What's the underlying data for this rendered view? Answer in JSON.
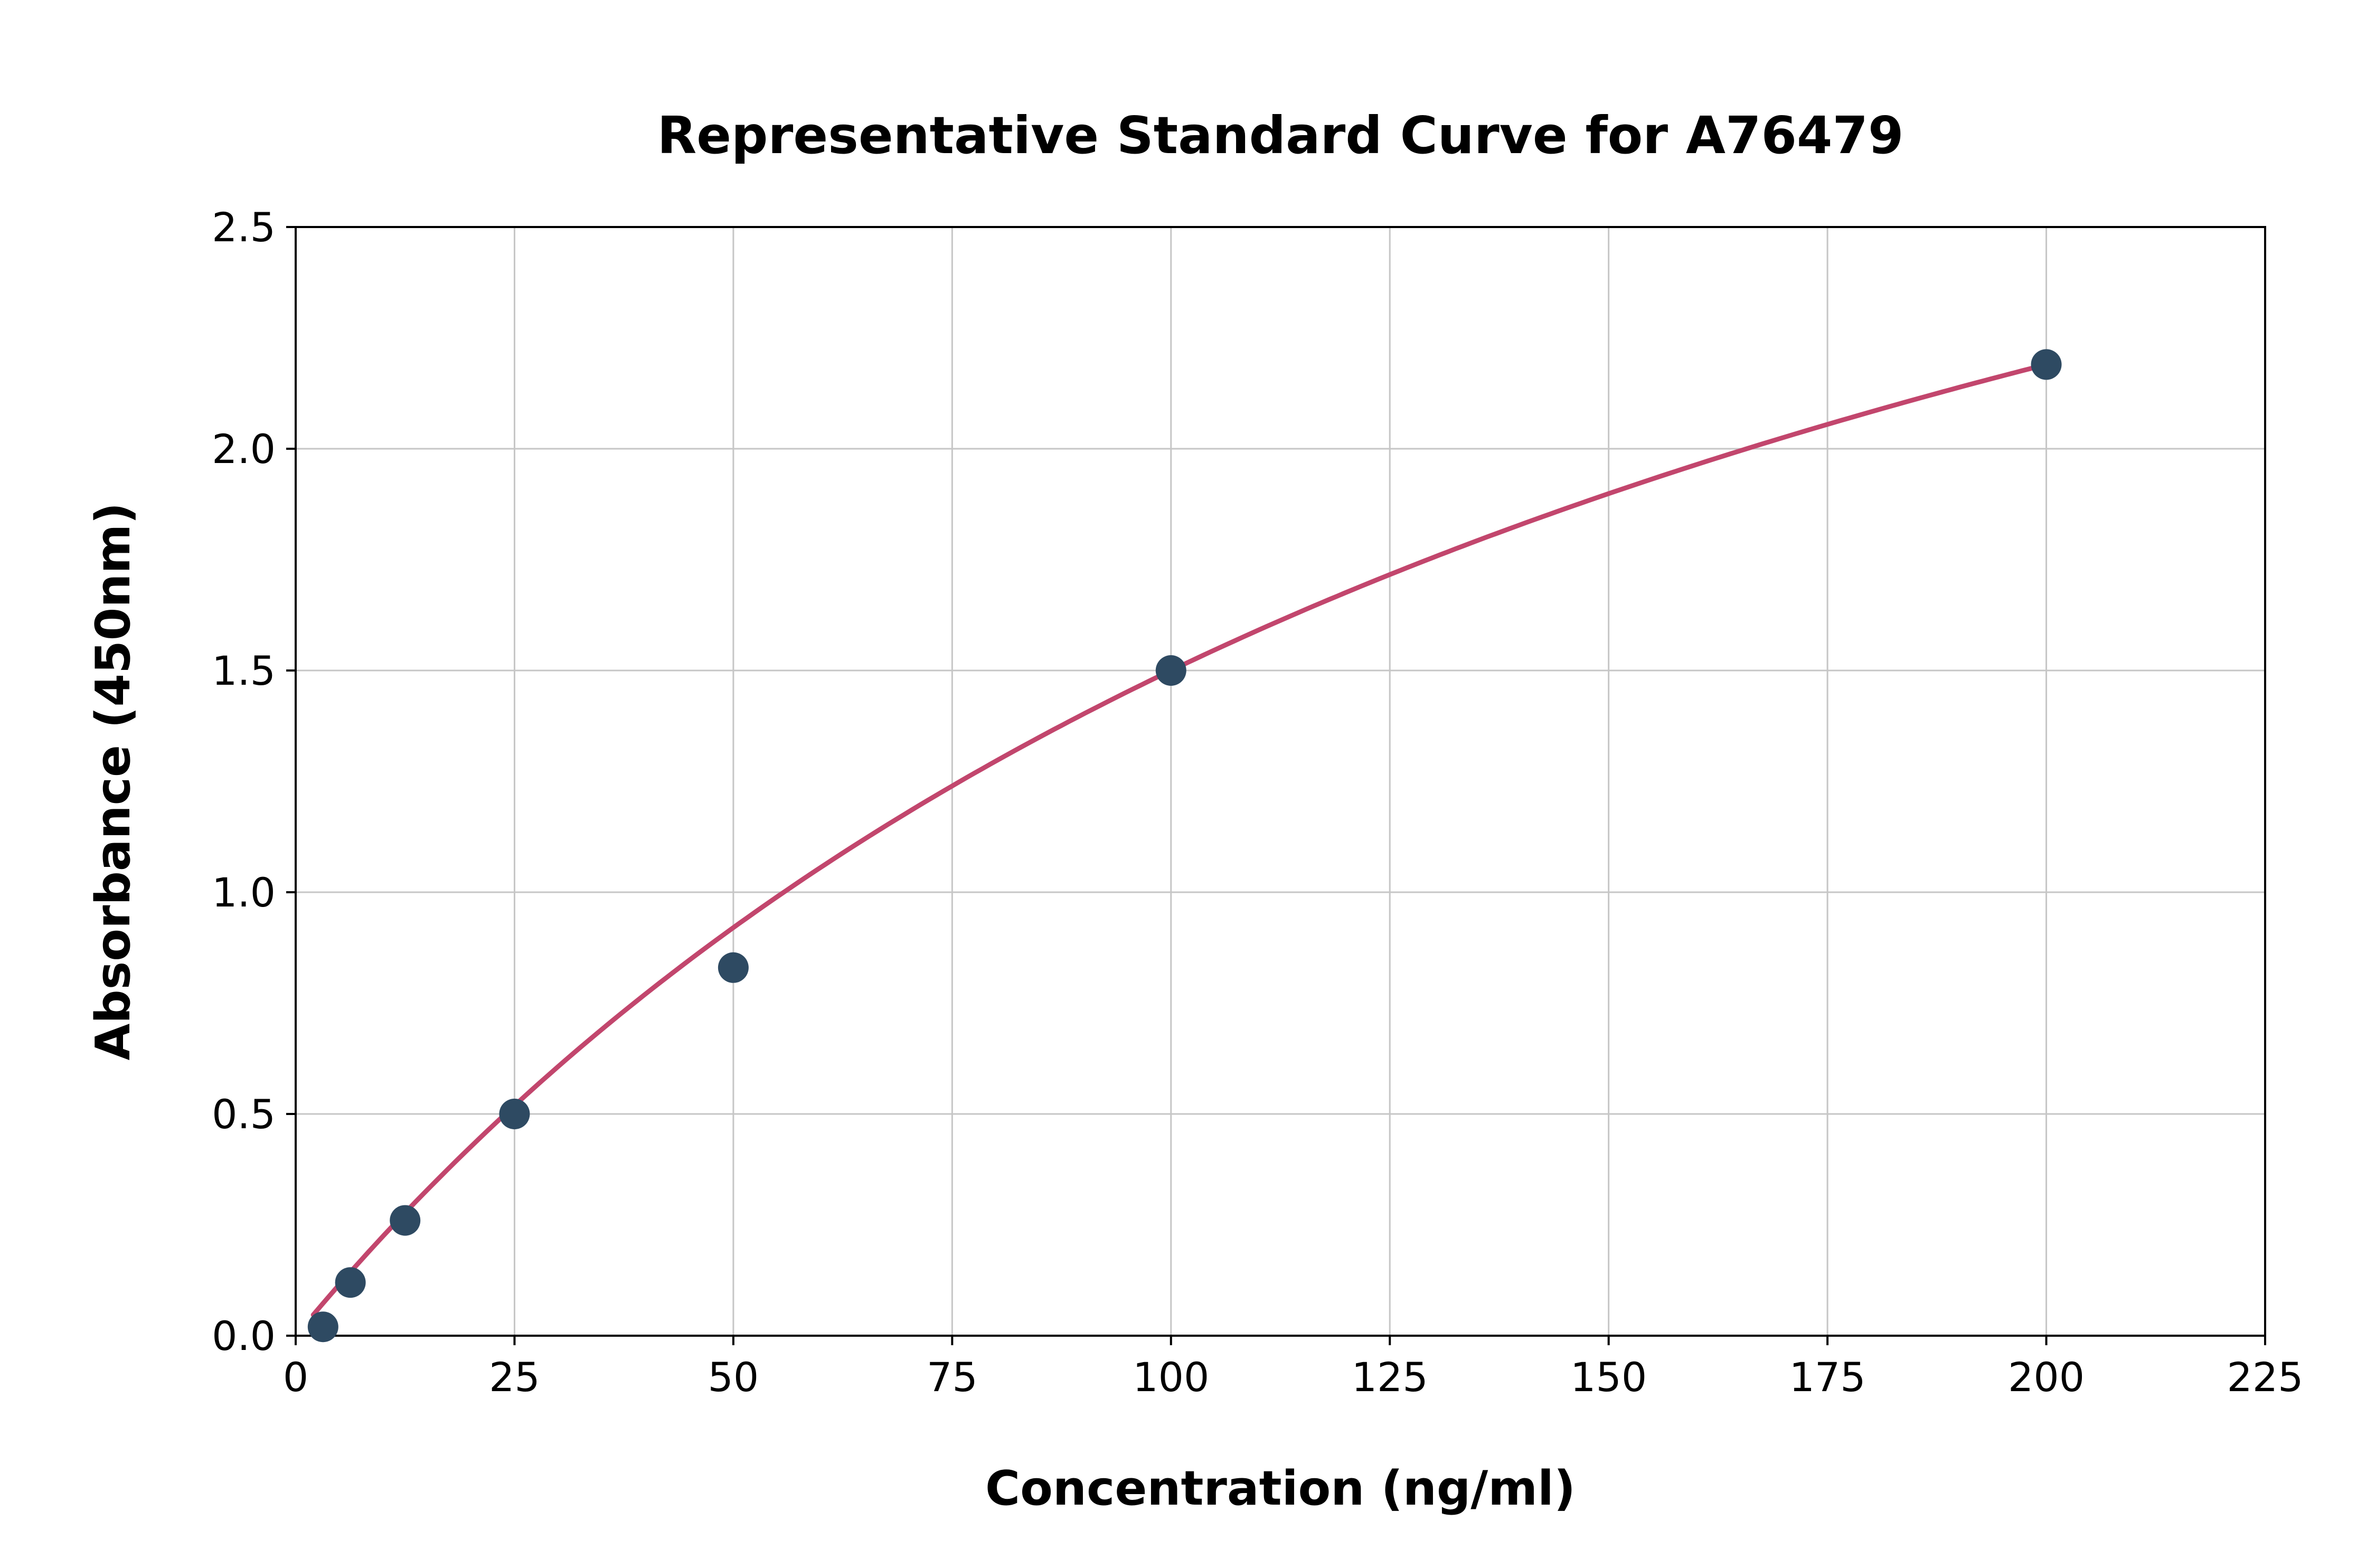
{
  "chart_data": {
    "type": "scatter",
    "title": "Representative Standard Curve for A76479",
    "xlabel": "Concentration (ng/ml)",
    "ylabel": "Absorbance (450nm)",
    "xlim": [
      0,
      225
    ],
    "ylim": [
      0,
      2.5
    ],
    "x_ticks": [
      0,
      25,
      50,
      75,
      100,
      125,
      150,
      175,
      200,
      225
    ],
    "y_ticks": [
      0.0,
      0.5,
      1.0,
      1.5,
      2.0,
      2.5
    ],
    "y_tick_decimals": 1,
    "grid": true,
    "legend": "none",
    "points": [
      {
        "x": 3.125,
        "y": 0.02
      },
      {
        "x": 6.25,
        "y": 0.12
      },
      {
        "x": 12.5,
        "y": 0.26
      },
      {
        "x": 25,
        "y": 0.5
      },
      {
        "x": 50,
        "y": 0.83
      },
      {
        "x": 100,
        "y": 1.5
      },
      {
        "x": 200,
        "y": 2.19
      }
    ],
    "colors": {
      "point": "#2e4a62",
      "curve": "#c2466d",
      "grid": "#c6c6c6",
      "axis": "#000000",
      "background": "#ffffff"
    }
  }
}
